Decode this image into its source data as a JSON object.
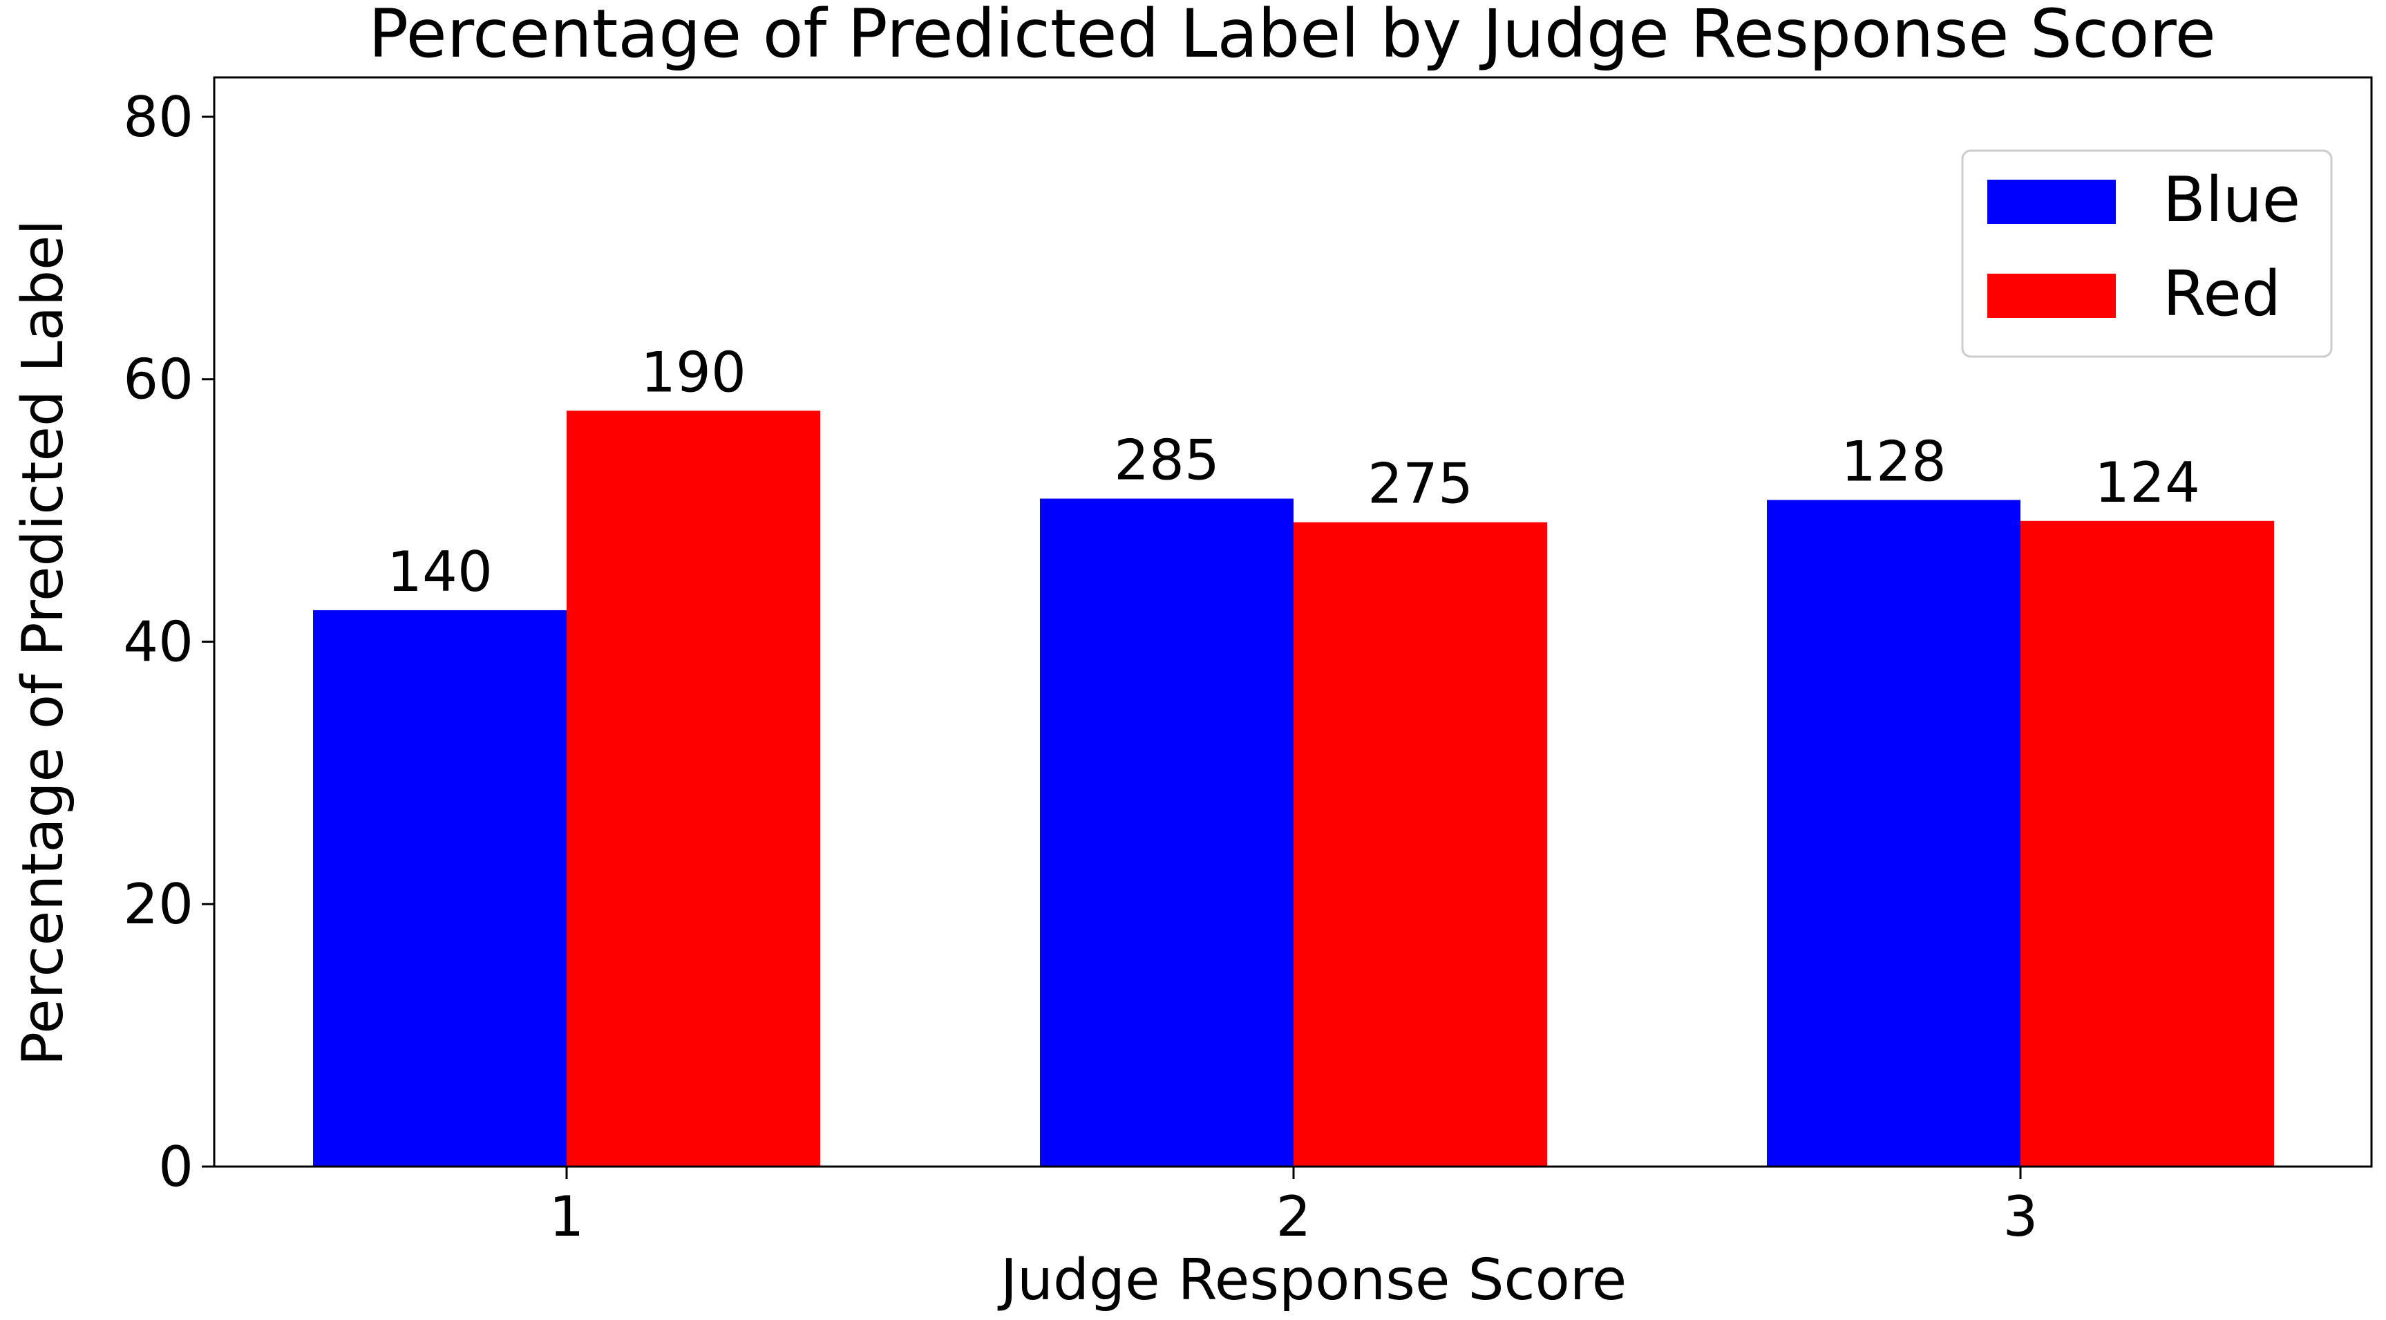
{
  "chart_data": {
    "type": "bar",
    "title": "Percentage of Predicted Label by Judge Response Score",
    "xlabel": "Judge Response Score",
    "ylabel": "Percentage of Predicted Label",
    "categories": [
      "1",
      "2",
      "3"
    ],
    "ylim": [
      0,
      83
    ],
    "yticks": [
      0,
      20,
      40,
      60,
      80
    ],
    "grid": false,
    "legend_position": "top-right",
    "series": [
      {
        "name": "Blue",
        "color": "#0000ff",
        "values": [
          42.4,
          50.9,
          50.8
        ],
        "labels": [
          "140",
          "285",
          "128"
        ]
      },
      {
        "name": "Red",
        "color": "#ff0000",
        "values": [
          57.6,
          49.1,
          49.2
        ],
        "labels": [
          "190",
          "275",
          "124"
        ]
      }
    ]
  }
}
